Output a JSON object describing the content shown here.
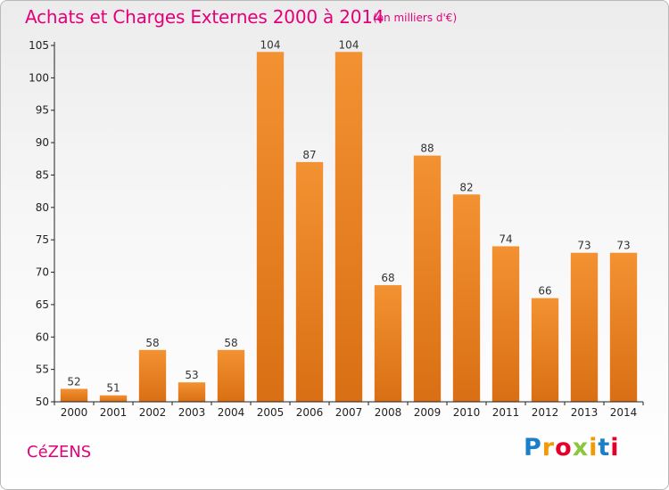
{
  "header": {
    "title": "Achats et Charges Externes 2000 à 2014",
    "subtitle": "(en milliers d'€)"
  },
  "footer": {
    "city": "CéZENS",
    "brand_letters": [
      {
        "char": "P",
        "color": "#1a7fc9"
      },
      {
        "char": "r",
        "color": "#f39a00"
      },
      {
        "char": "o",
        "color": "#e4002b"
      },
      {
        "char": "x",
        "color": "#8cc63f"
      },
      {
        "char": "i",
        "color": "#f39a00"
      },
      {
        "char": "t",
        "color": "#1a7fc9"
      },
      {
        "char": "i",
        "color": "#e4002b"
      }
    ]
  },
  "chart_data": {
    "type": "bar",
    "title": "Achats et Charges Externes 2000 à 2014",
    "subtitle": "(en milliers d'€)",
    "categories": [
      "2000",
      "2001",
      "2002",
      "2003",
      "2004",
      "2005",
      "2006",
      "2007",
      "2008",
      "2009",
      "2010",
      "2011",
      "2012",
      "2013",
      "2014"
    ],
    "values": [
      52,
      51,
      58,
      53,
      58,
      104,
      87,
      104,
      68,
      88,
      82,
      74,
      66,
      73,
      73
    ],
    "ylim": [
      50,
      105
    ],
    "yticks": [
      50,
      55,
      60,
      65,
      70,
      75,
      80,
      85,
      90,
      95,
      100,
      105
    ],
    "grid": false,
    "bar_color": "#f39232",
    "bar_color_dark": "#d96f14",
    "axis_color": "#222222"
  }
}
